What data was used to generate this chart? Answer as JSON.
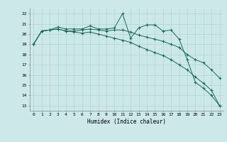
{
  "xlabel": "Humidex (Indice chaleur)",
  "xlim": [
    -0.5,
    23.5
  ],
  "ylim": [
    12.5,
    22.5
  ],
  "yticks": [
    13,
    14,
    15,
    16,
    17,
    18,
    19,
    20,
    21,
    22
  ],
  "xticks": [
    0,
    1,
    2,
    3,
    4,
    5,
    6,
    7,
    8,
    9,
    10,
    11,
    12,
    13,
    14,
    15,
    16,
    17,
    18,
    19,
    20,
    21,
    22,
    23
  ],
  "background_color": "#cce8e8",
  "grid_color": "#aad0d0",
  "line_color": "#1a6b5a",
  "line1": [
    19.0,
    20.3,
    20.4,
    20.7,
    20.5,
    20.5,
    20.5,
    20.8,
    20.5,
    20.5,
    20.6,
    22.0,
    19.6,
    20.6,
    20.9,
    20.9,
    20.3,
    20.4,
    19.5,
    17.5,
    15.3,
    14.7,
    14.0,
    13.0
  ],
  "line2": [
    19.0,
    20.3,
    20.4,
    20.5,
    20.3,
    20.3,
    20.4,
    20.5,
    20.4,
    20.3,
    20.4,
    20.4,
    20.2,
    19.9,
    19.7,
    19.5,
    19.3,
    19.0,
    18.7,
    18.0,
    17.5,
    17.2,
    16.5,
    15.7
  ],
  "line3": [
    19.0,
    20.3,
    20.4,
    20.5,
    20.3,
    20.2,
    20.1,
    20.2,
    20.0,
    19.8,
    19.6,
    19.4,
    19.2,
    18.8,
    18.5,
    18.2,
    17.9,
    17.5,
    17.0,
    16.5,
    15.8,
    15.2,
    14.5,
    13.0
  ]
}
